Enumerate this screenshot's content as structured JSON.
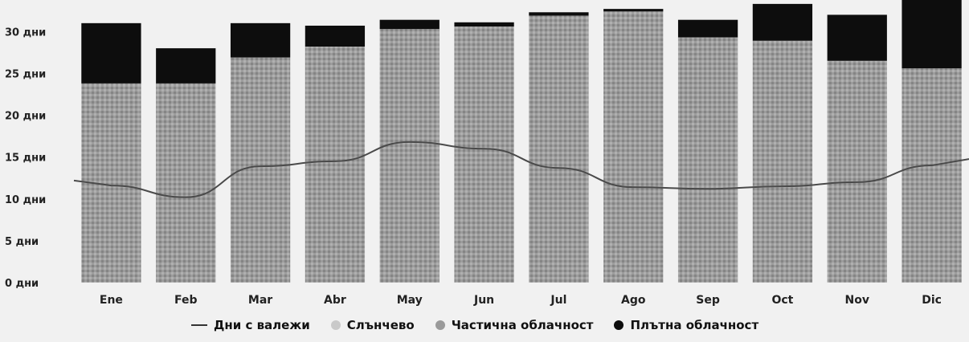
{
  "chart_data": {
    "type": "bar",
    "categories": [
      "Ene",
      "Feb",
      "Mar",
      "Abr",
      "May",
      "Jun",
      "Jul",
      "Ago",
      "Sep",
      "Oct",
      "Nov",
      "Dic"
    ],
    "y_tick_labels": [
      "0 дни",
      "5 дни",
      "10 дни",
      "15 дни",
      "20 дни",
      "25 дни",
      "30 дни"
    ],
    "y_ticks": [
      0,
      5,
      10,
      15,
      20,
      25,
      30
    ],
    "ylim": [
      0,
      33
    ],
    "stacked": true,
    "series": [
      {
        "name": "Частична облачност",
        "values": [
          23.8,
          23.8,
          26.9,
          28.2,
          30.3,
          30.6,
          31.9,
          32.4,
          29.3,
          28.9,
          26.5,
          25.6
        ],
        "color": "#9a9a9a"
      },
      {
        "name": "Плътна облачност",
        "values": [
          7.2,
          4.2,
          4.1,
          2.5,
          1.1,
          0.5,
          0.4,
          0.3,
          2.1,
          4.4,
          5.5,
          8.5
        ],
        "color": "#0d0d0d"
      }
    ],
    "line_series": {
      "name": "Дни с валежи",
      "values": [
        11.6,
        10.2,
        13.9,
        14.5,
        16.8,
        16.0,
        13.7,
        11.4,
        11.2,
        11.5,
        12.0,
        14.0
      ],
      "color": "#4a4a4a"
    },
    "legend": {
      "placement": "bottom-center",
      "items": [
        {
          "label": "Дни с валежи",
          "kind": "line",
          "color": "#333333"
        },
        {
          "label": "Слънчево",
          "kind": "dot",
          "color": "#c9c9c9"
        },
        {
          "label": "Частична облачност",
          "kind": "dot",
          "color": "#9a9a9a"
        },
        {
          "label": "Плътна облачност",
          "kind": "dot",
          "color": "#0d0d0d"
        }
      ]
    },
    "grid": false
  }
}
